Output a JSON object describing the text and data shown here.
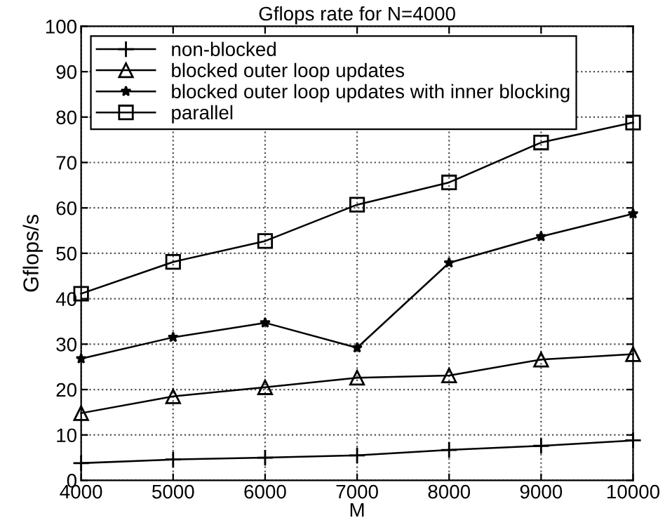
{
  "chart_data": {
    "type": "line",
    "title": "Gflops rate for N=4000",
    "xlabel": "M",
    "ylabel": "Gflops/s",
    "x": [
      4000,
      5000,
      6000,
      7000,
      8000,
      9000,
      10000
    ],
    "series": [
      {
        "name": "non-blocked",
        "color": "#000000",
        "marker": "plus",
        "values": [
          3.8,
          4.6,
          5.0,
          5.5,
          6.7,
          7.6,
          8.8
        ]
      },
      {
        "name": "blocked outer loop updates",
        "color": "#000000",
        "marker": "triangle",
        "values": [
          14.8,
          18.5,
          20.5,
          22.6,
          23.1,
          26.6,
          27.8
        ]
      },
      {
        "name": "blocked outer loop updates with inner blocking",
        "color": "#000000",
        "marker": "star",
        "values": [
          26.8,
          31.5,
          34.7,
          29.2,
          47.9,
          53.7,
          58.7
        ]
      },
      {
        "name": "parallel",
        "color": "#000000",
        "marker": "square",
        "values": [
          41.1,
          48.1,
          52.7,
          60.7,
          65.6,
          74.4,
          78.8
        ]
      }
    ],
    "xlim": [
      4000,
      10000
    ],
    "xticks": [
      4000,
      5000,
      6000,
      7000,
      8000,
      9000,
      10000
    ],
    "ylim": [
      0,
      100
    ],
    "yticks": [
      0,
      10,
      20,
      30,
      40,
      50,
      60,
      70,
      80,
      90,
      100
    ],
    "grid": true,
    "legend": "top left",
    "line_style": "solid"
  }
}
